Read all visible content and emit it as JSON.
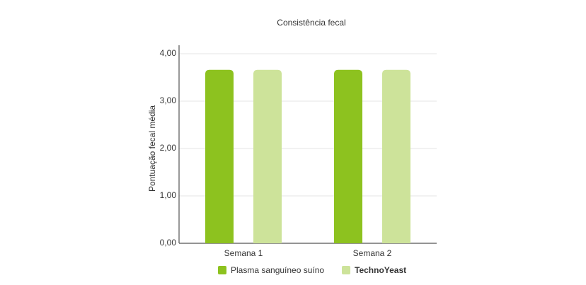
{
  "chart_data": {
    "type": "bar",
    "title": "Consistência fecal",
    "y_label": "Pontuação fecal média",
    "categories": [
      "Semana 1",
      "Semana 2"
    ],
    "series": [
      {
        "name": "Plasma sanguíneo suíno",
        "color": "#8dc21f",
        "values": [
          3.66,
          3.66
        ]
      },
      {
        "name": "TechnoYeast",
        "color": "#cde39a",
        "values": [
          3.66,
          3.66
        ]
      }
    ],
    "ylim": [
      0,
      4
    ],
    "yticks": [
      {
        "value": 0,
        "label": "0,00"
      },
      {
        "value": 1,
        "label": "1,00"
      },
      {
        "value": 2,
        "label": "2,00"
      },
      {
        "value": 3,
        "label": "3,00"
      },
      {
        "value": 4,
        "label": "4,00"
      }
    ],
    "grid": true
  }
}
